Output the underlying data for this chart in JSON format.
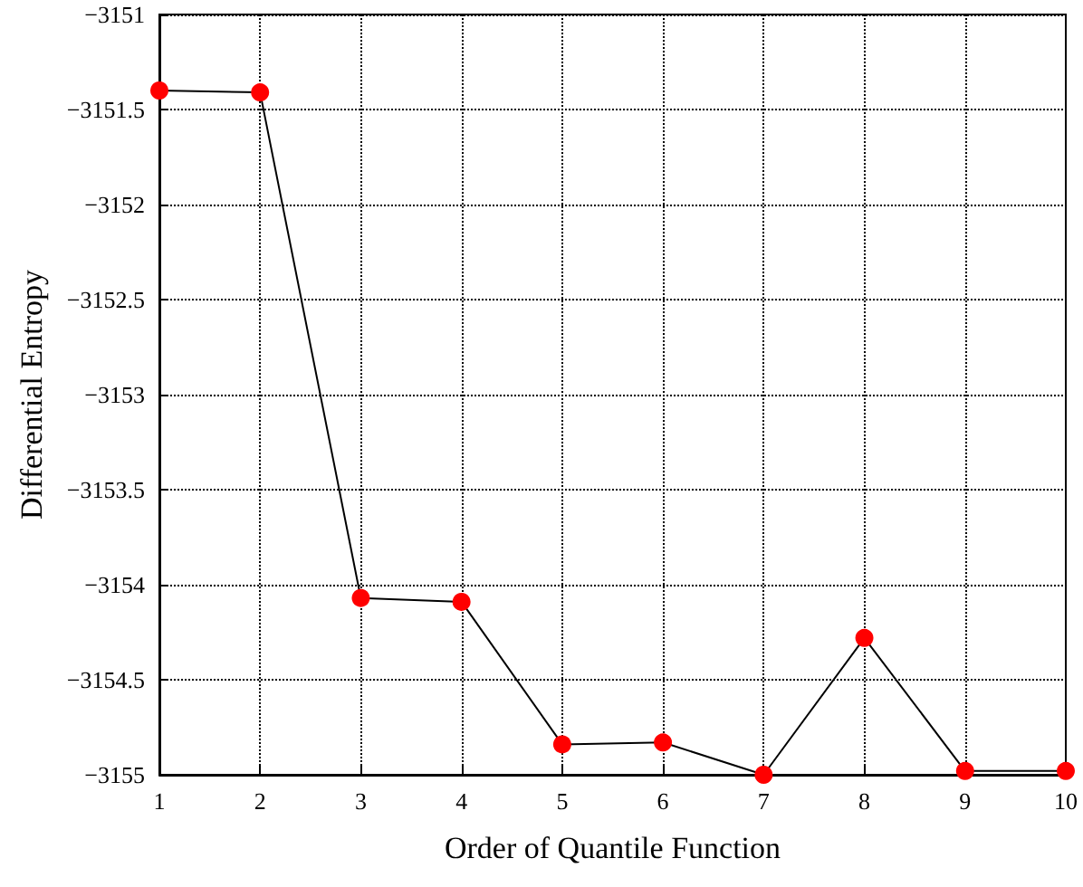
{
  "chart_data": {
    "type": "line",
    "xlabel": "Order of Quantile Function",
    "ylabel": "Differential Entropy",
    "x": [
      1,
      2,
      3,
      4,
      5,
      6,
      7,
      8,
      9,
      10
    ],
    "series": [
      {
        "color": "#000000",
        "values": [
          -3151.4,
          -3151.41,
          -3154.07,
          -3154.09,
          -3154.84,
          -3154.83,
          -3155,
          -3154.28,
          -3154.98,
          -3154.98
        ]
      }
    ],
    "marker": "circle",
    "line_style": "solid",
    "grid": true,
    "xlim": [
      1,
      10
    ],
    "xticks": [
      1,
      2,
      3,
      4,
      5,
      6,
      7,
      8,
      9,
      10
    ],
    "ylim": [
      -3155,
      -3151
    ],
    "yticks": [
      -3155,
      -3154.5,
      -3154,
      -3153.5,
      -3153,
      -3152.5,
      -3152,
      -3151.5,
      -3151
    ]
  }
}
